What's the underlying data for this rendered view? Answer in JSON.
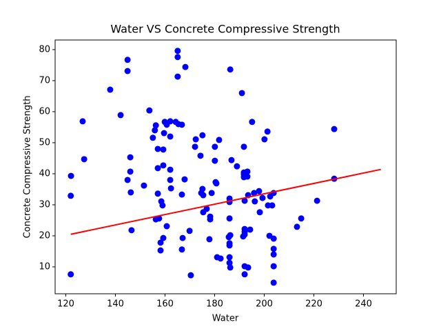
{
  "chart_data": {
    "type": "scatter",
    "title": "Water VS Concrete Compressive Strength",
    "x_label": "Water",
    "y_label": "Concrete Compressive Strength",
    "color": "#0000ff",
    "x": [
      122.1,
      122,
      122,
      126.8,
      127.4,
      137.9,
      142.1,
      144.9,
      144.9,
      144.9,
      146,
      146,
      146.2,
      146.5,
      151.5,
      153.7,
      155.1,
      155.9,
      156.3,
      156.3,
      157.1,
      157.1,
      157.1,
      157.6,
      158.2,
      158.2,
      158.5,
      159,
      159.3,
      159.3,
      159.3,
      159.6,
      159.9,
      160.7,
      160.7,
      162.1,
      162.1,
      162.1,
      162.1,
      162.4,
      164.3,
      165.1,
      165.1,
      165.1,
      165.4,
      166.8,
      167.1,
      166.8,
      166.8,
      167.9,
      168.2,
      169.9,
      170.4,
      172.1,
      172.4,
      174.3,
      174.6,
      175.1,
      175.1,
      175.4,
      175.4,
      176.8,
      178.2,
      178.2,
      177.9,
      178.8,
      180.1,
      180.1,
      180.4,
      180.7,
      181,
      182.4,
      181.8,
      185.7,
      186,
      186,
      186,
      186,
      186,
      186,
      186,
      186.3,
      186.3,
      186.3,
      186.8,
      189,
      191,
      191.5,
      191.8,
      191.8,
      191.8,
      191.8,
      192.1,
      192.1,
      192.1,
      192.1,
      192.1,
      192.1,
      193.2,
      193.2,
      193.5,
      193.5,
      194.3,
      195.1,
      195.9,
      196.2,
      197.9,
      198.2,
      199.3,
      200.1,
      201.3,
      201.5,
      202.1,
      202.4,
      203.2,
      203.8,
      203.8,
      203.8,
      203.8,
      203.8,
      203.8,
      213.2,
      214.9,
      221.3,
      228.2,
      228.2
    ],
    "y": [
      39.3,
      32.9,
      7.6,
      56.9,
      44.7,
      67.1,
      58.9,
      76.7,
      73.1,
      38,
      45.3,
      40.7,
      34,
      21.8,
      36.2,
      60.4,
      51.6,
      54,
      55.6,
      25.3,
      48,
      41.8,
      33.6,
      25.6,
      17.8,
      15.3,
      31.1,
      29.8,
      47.8,
      42.7,
      19.3,
      53.1,
      56.7,
      55.8,
      23.1,
      56.9,
      52,
      41.3,
      38,
      35.3,
      56.7,
      79.6,
      77.6,
      71.3,
      56,
      55.8,
      19.3,
      15.6,
      33.3,
      38.2,
      74.4,
      21.6,
      7.3,
      48.7,
      51.1,
      45.8,
      33.8,
      52.4,
      35.1,
      33.1,
      27.6,
      28.7,
      26.2,
      25.3,
      18.9,
      33.8,
      48.7,
      44.2,
      37.3,
      36.9,
      13.1,
      12.7,
      50.9,
      19.6,
      25.6,
      32,
      30.9,
      17.6,
      16.9,
      13.1,
      11.3,
      9.8,
      73.6,
      20.2,
      44.4,
      42.4,
      66,
      19.8,
      48.7,
      39.8,
      38.9,
      40.4,
      22.2,
      21.3,
      20.4,
      31.3,
      10.2,
      7.6,
      40.7,
      39.1,
      33.1,
      9.8,
      22,
      56.7,
      33.8,
      31.1,
      34.4,
      27.6,
      32.2,
      51.1,
      53.6,
      29.8,
      20,
      32.7,
      29.8,
      33.8,
      19.1,
      15.8,
      14,
      10.2,
      4.9,
      22.9,
      25.6,
      31.3,
      54.4,
      38.4
    ],
    "fit": {
      "x": [
        122,
        247
      ],
      "y": [
        20.5,
        41.4
      ],
      "color": "#ff0000"
    },
    "xlim": [
      115.7,
      253.2
    ],
    "xticks": [
      120,
      140,
      160,
      180,
      200,
      220,
      240
    ],
    "ylim": [
      1.33,
      83.1
    ],
    "yticks": [
      10,
      20,
      30,
      40,
      50,
      60,
      70,
      80
    ]
  }
}
